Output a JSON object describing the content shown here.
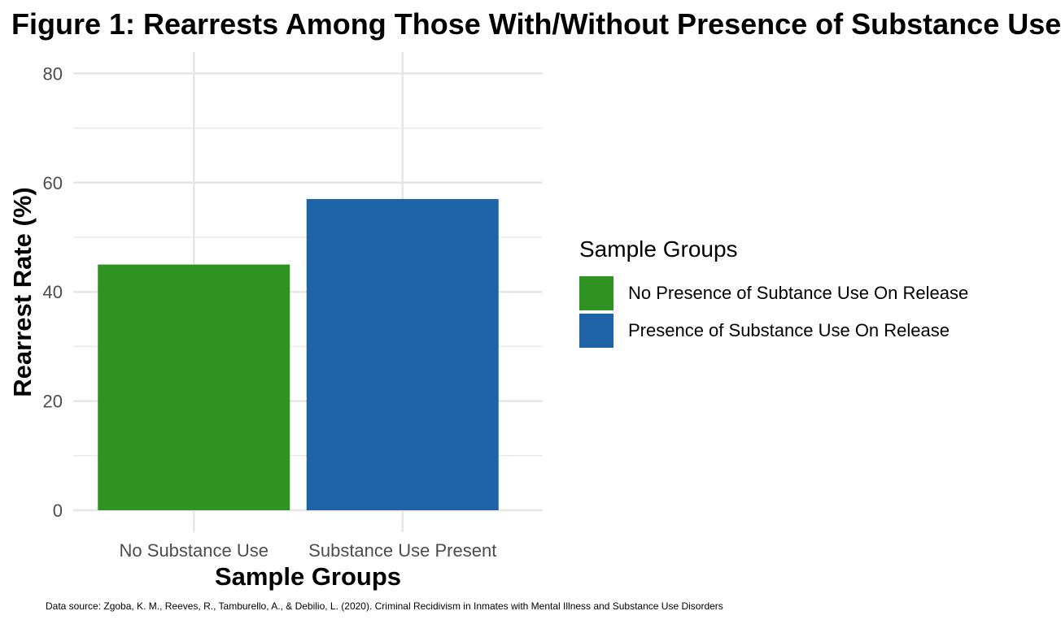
{
  "chart_data": {
    "type": "bar",
    "title": "Figure 1: Rearrests Among Those With/Without Presence of Substance Use",
    "xlabel": "Sample Groups",
    "ylabel": "Rearrest Rate (%)",
    "categories": [
      "No Substance Use",
      "Substance Use Present"
    ],
    "values": [
      45,
      57
    ],
    "colors": [
      "#2e9321",
      "#1f63a7"
    ],
    "ylim": [
      0,
      84
    ],
    "yticks": [
      0,
      20,
      40,
      60,
      80
    ],
    "grid": true,
    "legend": {
      "title": "Sample Groups",
      "position": "right",
      "entries": [
        {
          "label": "No Presence of Subtance Use On Release",
          "color": "#2e9321"
        },
        {
          "label": "Presence of Substance Use On Release",
          "color": "#1f63a7"
        }
      ]
    },
    "caption": "Data source: Zgoba, K. M., Reeves, R., Tamburello, A., & Debilio, L. (2020). Criminal Recidivism in Inmates with Mental Illness and Substance Use Disorders"
  }
}
